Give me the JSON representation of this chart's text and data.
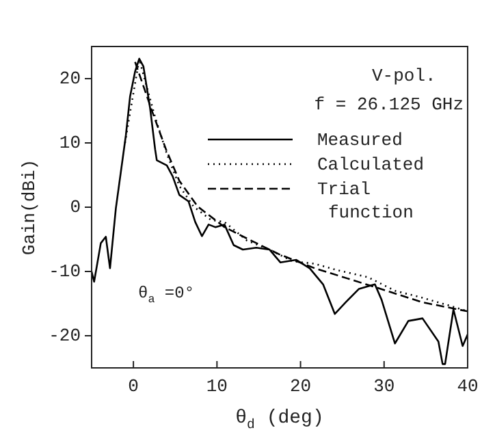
{
  "chart_data": {
    "type": "line",
    "xlabel": "θ$_{d}$ (deg)",
    "ylabel": "Gain(dBi)",
    "xlim": [
      -5,
      40
    ],
    "ylim": [
      -25,
      25
    ],
    "xticks": [
      0,
      10,
      20,
      30,
      40
    ],
    "yticks": [
      -20,
      -10,
      0,
      10,
      20
    ],
    "grid": false,
    "legend": "top right",
    "marker": "none",
    "annotations": [
      "V-pol.",
      "f = 26.125 GHz",
      "θ$_{a}$ =0°"
    ],
    "series": [
      {
        "name": "Measured",
        "color": "#000000",
        "line_style": "solid",
        "x": [
          -5,
          -4.7,
          -3.9,
          -3.3,
          -2.8,
          -2.1,
          -0.9,
          -0.4,
          0.2,
          0.7,
          1.2,
          2,
          2.6,
          2.8,
          4,
          4.7,
          5.5,
          6.6,
          7.4,
          8.2,
          9,
          9.8,
          10.9,
          12,
          13.1,
          14.7,
          16.3,
          17.6,
          19.5,
          21.1,
          22.7,
          24.1,
          25.4,
          27,
          28.9,
          29.7,
          31.3,
          32.9,
          34.6,
          36.5,
          37,
          37.3,
          38.3,
          39.4,
          40
        ],
        "values": [
          -10,
          -11.6,
          -5.6,
          -4.6,
          -9.5,
          -0.2,
          11.2,
          17.2,
          21.1,
          23.1,
          21.9,
          15.4,
          9,
          7.3,
          6.5,
          4.8,
          1.9,
          0.9,
          -2.3,
          -4.5,
          -2.7,
          -3.1,
          -2.7,
          -5.9,
          -6.6,
          -6.3,
          -6.6,
          -8.6,
          -8.2,
          -9.5,
          -12,
          -16.6,
          -14.8,
          -12.7,
          -12,
          -14.4,
          -21.2,
          -17.7,
          -17.3,
          -20.9,
          -24.4,
          -24.4,
          -15.9,
          -21.6,
          -19.8
        ]
      },
      {
        "name": "Calculated",
        "color": "#000000",
        "line_style": "dotted",
        "x": [
          -1,
          -0.4,
          0.7,
          2.6,
          4,
          5.5,
          7.2,
          9.3,
          10.9,
          13.6,
          16.3,
          19,
          21.7,
          24.4,
          28.1,
          31.3,
          34.6,
          37.8,
          40
        ],
        "values": [
          10,
          14.7,
          23,
          14,
          8.3,
          3.3,
          0.1,
          -2,
          -2.3,
          -5.2,
          -6.6,
          -8.4,
          -8.8,
          -9.8,
          -10.9,
          -13,
          -14.1,
          -15.3,
          -16.2
        ]
      },
      {
        "name": "Trial function",
        "color": "#000000",
        "line_style": "dashed",
        "x": [
          0.2,
          2.3,
          3.9,
          5.5,
          7.7,
          10.9,
          14.1,
          17.4,
          21.7,
          25.9,
          30.3,
          34.6,
          40
        ],
        "values": [
          22.6,
          14.7,
          9,
          4.1,
          0.1,
          -3.1,
          -5.2,
          -7.3,
          -9.5,
          -11.2,
          -13,
          -14.8,
          -16.2
        ]
      }
    ]
  }
}
